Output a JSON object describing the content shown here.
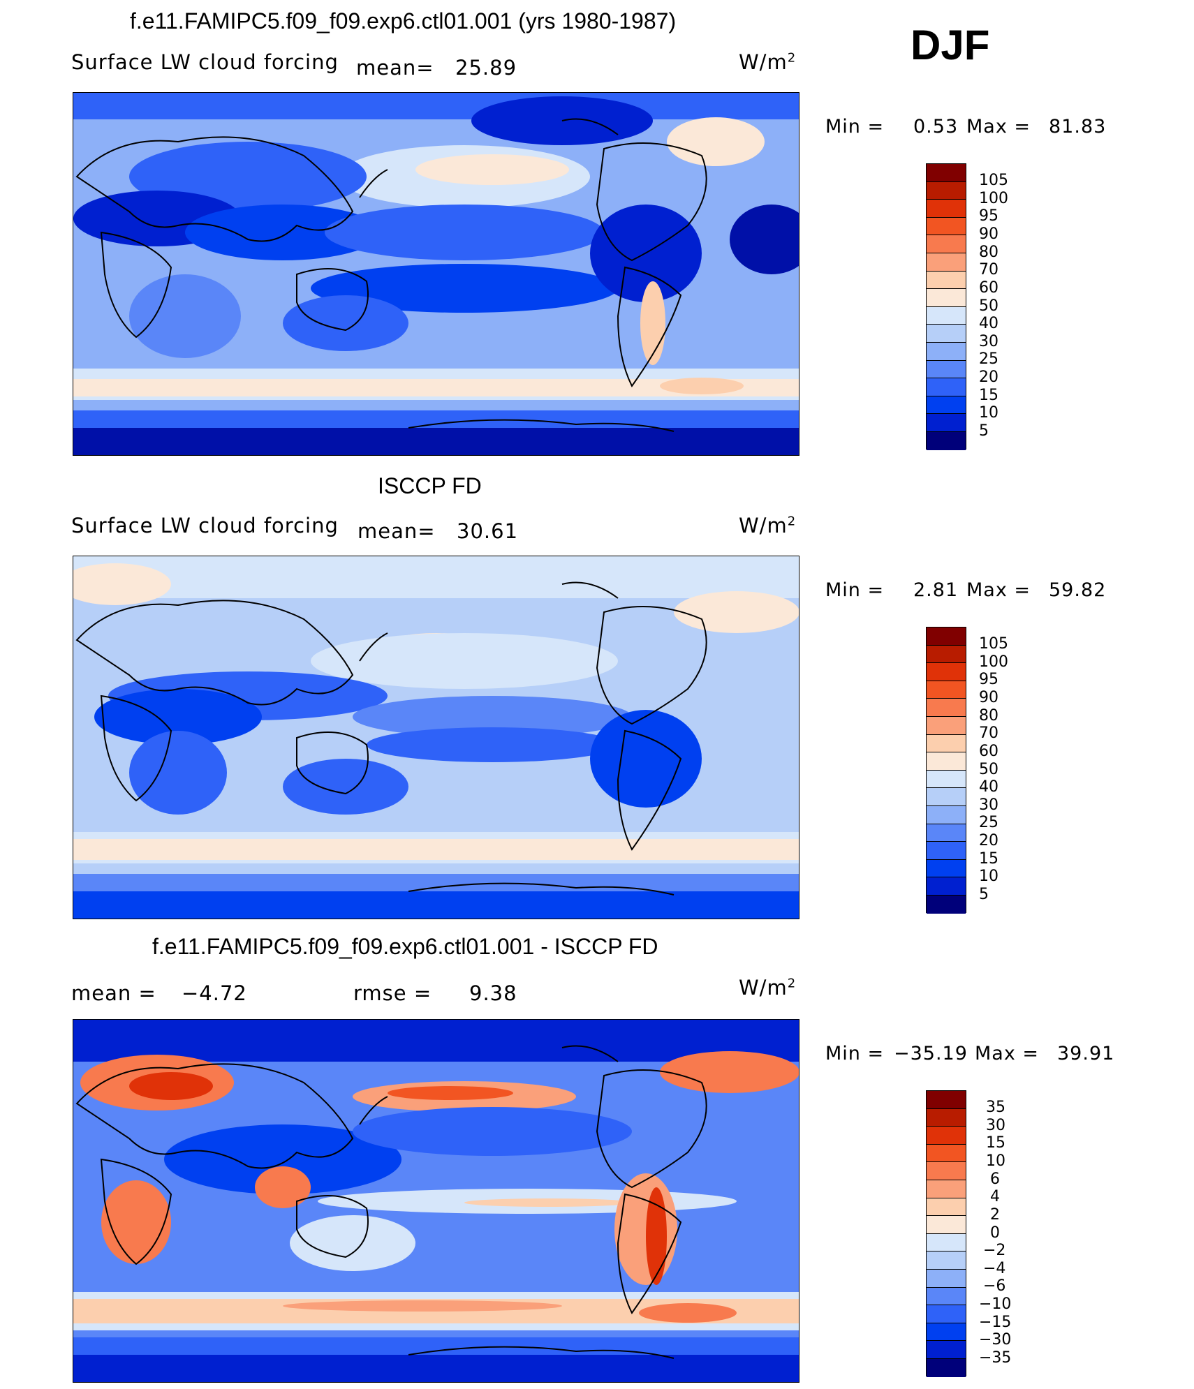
{
  "season": "DJF",
  "units": "W/m",
  "units_sup": "2",
  "colors": {
    "levels": [
      "#00007a",
      "#0010a8",
      "#0020d0",
      "#0040f0",
      "#2f62f8",
      "#5a86f8",
      "#8db0f8",
      "#b6cff8",
      "#d6e6fa",
      "#fbe8d8",
      "#fccfae",
      "#faa07a",
      "#f87a4e",
      "#f25522",
      "#e03208",
      "#b81c00",
      "#800000"
    ]
  },
  "panels": [
    {
      "title": "f.e11.FAMIPC5.f09_f09.exp6.ctl01.001 (yrs 1980-1987)",
      "variable": "Surface LW cloud forcing",
      "mean_label": "mean=",
      "mean": "25.89",
      "min_label": "Min =",
      "min": "0.53",
      "max_label": "Max =",
      "max": "81.83",
      "colorbar_labels": [
        "105",
        "100",
        "95",
        "90",
        "80",
        "70",
        "60",
        "50",
        "40",
        "30",
        "25",
        "20",
        "15",
        "10",
        "5"
      ]
    },
    {
      "title": "ISCCP FD",
      "variable": "Surface LW cloud forcing",
      "mean_label": "mean=",
      "mean": "30.61",
      "min_label": "Min =",
      "min": "2.81",
      "max_label": "Max =",
      "max": "59.82",
      "colorbar_labels": [
        "105",
        "100",
        "95",
        "90",
        "80",
        "70",
        "60",
        "50",
        "40",
        "30",
        "25",
        "20",
        "15",
        "10",
        "5"
      ]
    },
    {
      "title": "f.e11.FAMIPC5.f09_f09.exp6.ctl01.001 - ISCCP FD",
      "mean_label": "mean =",
      "mean": "−4.72",
      "rmse_label": "rmse =",
      "rmse": "9.38",
      "min_label": "Min =",
      "min": "−35.19",
      "max_label": "Max =",
      "max": "39.91",
      "colorbar_labels": [
        "35",
        "30",
        "15",
        "10",
        "6",
        "4",
        "2",
        "0",
        "−2",
        "−4",
        "−6",
        "−10",
        "−15",
        "−30",
        "−35"
      ]
    }
  ]
}
